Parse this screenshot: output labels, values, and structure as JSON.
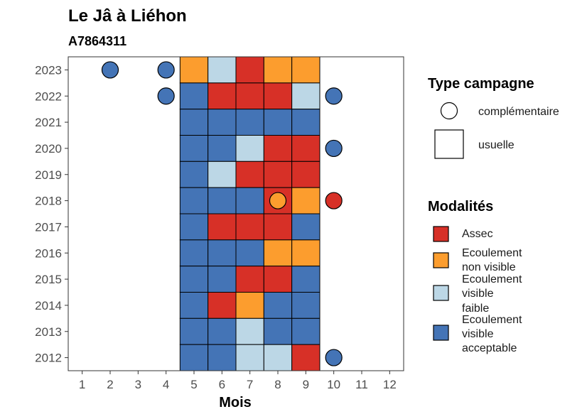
{
  "header": {
    "title": "Le Jâ à Liéhon",
    "subtitle": "A7864311"
  },
  "chart_data": {
    "type": "heatmap",
    "title": "Le Jâ à Liéhon",
    "subtitle": "A7864311",
    "xlabel": "Mois",
    "ylabel": "",
    "x_ticks": [
      "1",
      "2",
      "3",
      "4",
      "5",
      "6",
      "7",
      "8",
      "9",
      "10",
      "11",
      "12"
    ],
    "y_ticks": [
      "2023",
      "2022",
      "2021",
      "2020",
      "2019",
      "2018",
      "2017",
      "2016",
      "2015",
      "2014",
      "2013",
      "2012"
    ],
    "xlim": [
      0.5,
      12.5
    ],
    "ylim": [
      2011.5,
      2023.5
    ],
    "colors": {
      "Assec": "#d73027",
      "Ecoulement non visible": "#fc9d2e",
      "Ecoulement visible faible": "#bcd7e6",
      "Ecoulement visible acceptable": "#4474b6"
    },
    "usuelle": [
      {
        "year": 2023,
        "months": {
          "5": "Ecoulement non visible",
          "6": "Ecoulement visible faible",
          "7": "Assec",
          "8": "Ecoulement non visible",
          "9": "Ecoulement non visible"
        }
      },
      {
        "year": 2022,
        "months": {
          "5": "Ecoulement visible acceptable",
          "6": "Assec",
          "7": "Assec",
          "8": "Assec",
          "9": "Ecoulement visible faible"
        }
      },
      {
        "year": 2021,
        "months": {
          "5": "Ecoulement visible acceptable",
          "6": "Ecoulement visible acceptable",
          "7": "Ecoulement visible acceptable",
          "8": "Ecoulement visible acceptable",
          "9": "Ecoulement visible acceptable"
        }
      },
      {
        "year": 2020,
        "months": {
          "5": "Ecoulement visible acceptable",
          "6": "Ecoulement visible acceptable",
          "7": "Ecoulement visible faible",
          "8": "Assec",
          "9": "Assec"
        }
      },
      {
        "year": 2019,
        "months": {
          "5": "Ecoulement visible acceptable",
          "6": "Ecoulement visible faible",
          "7": "Assec",
          "8": "Assec",
          "9": "Assec"
        }
      },
      {
        "year": 2018,
        "months": {
          "5": "Ecoulement visible acceptable",
          "6": "Ecoulement visible acceptable",
          "7": "Ecoulement visible acceptable",
          "8": "Assec",
          "9": "Ecoulement non visible"
        }
      },
      {
        "year": 2017,
        "months": {
          "5": "Ecoulement visible acceptable",
          "6": "Assec",
          "7": "Assec",
          "8": "Assec",
          "9": "Ecoulement visible acceptable"
        }
      },
      {
        "year": 2016,
        "months": {
          "5": "Ecoulement visible acceptable",
          "6": "Ecoulement visible acceptable",
          "7": "Ecoulement visible acceptable",
          "8": "Ecoulement non visible",
          "9": "Ecoulement non visible"
        }
      },
      {
        "year": 2015,
        "months": {
          "5": "Ecoulement visible acceptable",
          "6": "Ecoulement visible acceptable",
          "7": "Assec",
          "8": "Assec",
          "9": "Ecoulement visible acceptable"
        }
      },
      {
        "year": 2014,
        "months": {
          "5": "Ecoulement visible acceptable",
          "6": "Assec",
          "7": "Ecoulement non visible",
          "8": "Ecoulement visible acceptable",
          "9": "Ecoulement visible acceptable"
        }
      },
      {
        "year": 2013,
        "months": {
          "5": "Ecoulement visible acceptable",
          "6": "Ecoulement visible acceptable",
          "7": "Ecoulement visible faible",
          "8": "Ecoulement visible acceptable",
          "9": "Ecoulement visible acceptable"
        }
      },
      {
        "year": 2012,
        "months": {
          "5": "Ecoulement visible acceptable",
          "6": "Ecoulement visible acceptable",
          "7": "Ecoulement visible faible",
          "8": "Ecoulement visible faible",
          "9": "Assec"
        }
      }
    ],
    "complementaire": [
      {
        "year": 2023,
        "month": 2,
        "modalite": "Ecoulement visible acceptable"
      },
      {
        "year": 2023,
        "month": 4,
        "modalite": "Ecoulement visible acceptable"
      },
      {
        "year": 2022,
        "month": 4,
        "modalite": "Ecoulement visible acceptable"
      },
      {
        "year": 2022,
        "month": 10,
        "modalite": "Ecoulement visible acceptable"
      },
      {
        "year": 2020,
        "month": 10,
        "modalite": "Ecoulement visible acceptable"
      },
      {
        "year": 2018,
        "month": 8,
        "modalite": "Ecoulement non visible"
      },
      {
        "year": 2018,
        "month": 10,
        "modalite": "Assec"
      },
      {
        "year": 2012,
        "month": 10,
        "modalite": "Ecoulement visible acceptable"
      }
    ],
    "legend_placement": "right",
    "grid": false
  },
  "legend": {
    "type_title": "Type campagne",
    "type_items": [
      {
        "shape": "circle",
        "label": "complémentaire"
      },
      {
        "shape": "square",
        "label": "usuelle"
      }
    ],
    "mod_title": "Modalités",
    "mod_items": [
      {
        "key": "Assec",
        "lines": [
          "Assec"
        ]
      },
      {
        "key": "Ecoulement non visible",
        "lines": [
          "Ecoulement",
          "non visible"
        ]
      },
      {
        "key": "Ecoulement visible faible",
        "lines": [
          "Ecoulement",
          "visible",
          "faible"
        ]
      },
      {
        "key": "Ecoulement visible acceptable",
        "lines": [
          "Ecoulement",
          "visible",
          "acceptable"
        ]
      }
    ]
  }
}
